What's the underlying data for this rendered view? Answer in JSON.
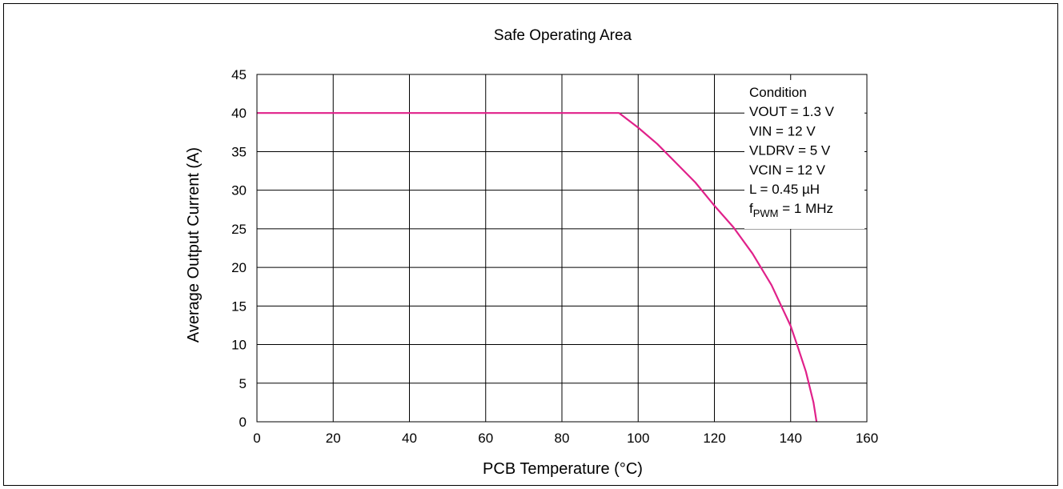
{
  "chart_data": {
    "type": "line",
    "title": "Safe Operating Area",
    "xlabel": "PCB Temperature (°C)",
    "ylabel": "Average Output Current  (A)",
    "xlim": [
      0,
      160
    ],
    "ylim": [
      0,
      45
    ],
    "x_ticks": [
      0,
      20,
      40,
      60,
      80,
      100,
      120,
      140,
      160
    ],
    "y_ticks": [
      0,
      5,
      10,
      15,
      20,
      25,
      30,
      35,
      40,
      45
    ],
    "grid": true,
    "series": [
      {
        "color": "#e0218a",
        "points": [
          [
            0,
            40
          ],
          [
            95,
            40
          ],
          [
            100,
            38.1
          ],
          [
            105,
            36
          ],
          [
            110,
            33.5
          ],
          [
            115,
            31
          ],
          [
            120,
            28
          ],
          [
            125,
            25.2
          ],
          [
            130,
            21.8
          ],
          [
            135,
            17.7
          ],
          [
            140,
            12.4
          ],
          [
            142,
            9.5
          ],
          [
            144,
            6.5
          ],
          [
            146,
            2.5
          ],
          [
            146.8,
            0
          ]
        ]
      }
    ],
    "legend": {
      "placement": "top-right",
      "title": "Condition",
      "lines": [
        {
          "text": "VOUT = 1.3 V"
        },
        {
          "text": "VIN = 12 V"
        },
        {
          "text": "VLDRV = 5 V"
        },
        {
          "text": "VCIN = 12 V"
        },
        {
          "text": "L = 0.45 µH"
        },
        {
          "main": "f",
          "sub": "PWM",
          "rest": " = 1 MHz"
        }
      ]
    }
  }
}
